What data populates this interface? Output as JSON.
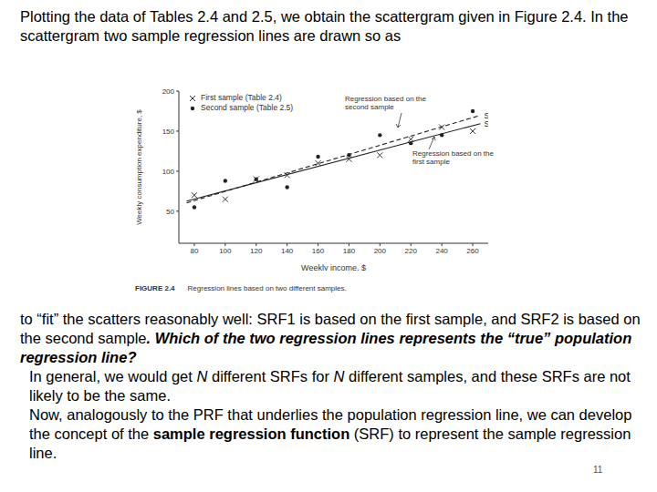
{
  "paragraphs": [
    {
      "runs": [
        {
          "text": "Plotting the data of Tables 2.4 and 2.5, we obtain the scattergram given in Figure 2.4. In the scattergram two sample regression lines are drawn so as"
        }
      ]
    },
    {
      "runs": [
        {
          "text": "to “fit” the scatters reasonably well: SRF1 is based on the first sample, and SRF2 is based on the second sample"
        },
        {
          "text": ". Which of the two regression lines represents the “true” population regression line?",
          "style": "bold-italic"
        }
      ]
    },
    {
      "runs": [
        {
          "text": "In general, we would get "
        },
        {
          "text": "N",
          "style": "italic"
        },
        {
          "text": " different SRFs for "
        },
        {
          "text": "N",
          "style": "italic"
        },
        {
          "text": " different samples, and these SRFs are not likely to be the same."
        }
      ]
    },
    {
      "runs": [
        {
          "text": "Now, analogously to the PRF that underlies the population regression line, we can develop the concept of the "
        },
        {
          "text": "sample regression function",
          "style": "bold"
        },
        {
          "text": " (SRF) to represent the sample regression line."
        }
      ]
    }
  ],
  "page_number": 11,
  "figure_caption": {
    "label": "FIGURE 2.4",
    "text": "Regression lines based on two different samples."
  },
  "chart_data": {
    "type": "scatter",
    "x_label": "Weekly income, $",
    "y_label": "Weekly consumption expenditure, $",
    "xlim": [
      70,
      270
    ],
    "xticks": [
      80,
      100,
      120,
      140,
      160,
      180,
      200,
      220,
      240,
      260
    ],
    "ylim": [
      10,
      200
    ],
    "yticks": [
      50,
      100,
      150,
      200
    ],
    "grid": false,
    "legend": "top-left",
    "series": [
      {
        "name": "First sample (Table 2.4)",
        "type": "scatter",
        "marker": "x",
        "color": "#333333",
        "x": [
          80,
          100,
          120,
          140,
          160,
          180,
          200,
          220,
          240,
          260
        ],
        "values": [
          70,
          65,
          90,
          95,
          110,
          115,
          120,
          140,
          155,
          150
        ]
      },
      {
        "name": "Second sample (Table 2.5)",
        "type": "scatter",
        "marker": "circle",
        "color": "#222222",
        "x": [
          80,
          100,
          120,
          140,
          160,
          180,
          200,
          220,
          240,
          260
        ],
        "values": [
          55,
          88,
          90,
          80,
          118,
          120,
          145,
          135,
          145,
          175
        ]
      },
      {
        "name": "SRF2",
        "type": "line",
        "line_style": "dashed",
        "color": "#222222",
        "x": [
          75,
          265
        ],
        "values": [
          60.4,
          169.8
        ]
      },
      {
        "name": "SRF1",
        "type": "line",
        "line_style": "solid",
        "color": "#222222",
        "x": [
          75,
          265
        ],
        "values": [
          62.6,
          159.4
        ]
      }
    ],
    "annotations": [
      {
        "text": "Regression based on the second sample"
      },
      {
        "text": "Regression based on the first sample"
      }
    ]
  }
}
